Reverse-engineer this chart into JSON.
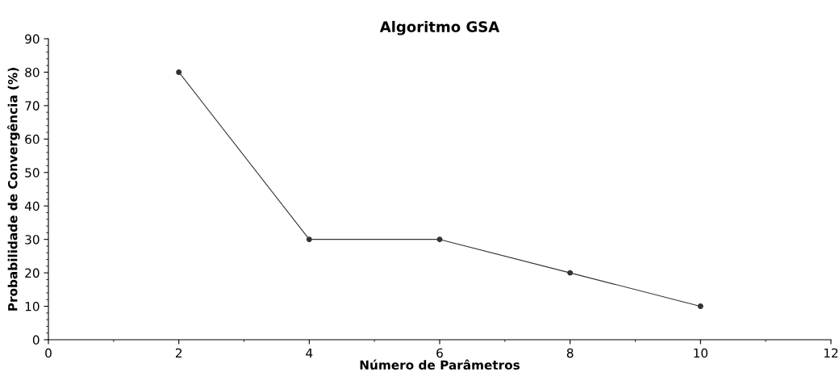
{
  "chart_data": {
    "type": "line",
    "title": "Algoritmo GSA",
    "xlabel": "Número de Parâmetros",
    "ylabel": "Probabilidade de Convergência (%)",
    "x": [
      2,
      4,
      6,
      8,
      10
    ],
    "series": [
      {
        "color": "#333333",
        "values": [
          80,
          30,
          30,
          20,
          10
        ]
      }
    ],
    "xlim": [
      0,
      12
    ],
    "xticks": [
      0,
      2,
      4,
      6,
      8,
      10,
      12
    ],
    "ylim": [
      0,
      90
    ],
    "yticks": [
      0,
      10,
      20,
      30,
      40,
      50,
      60,
      70,
      80,
      90
    ],
    "marker": "circle",
    "line_style": "solid",
    "grid": false,
    "legend": false
  }
}
